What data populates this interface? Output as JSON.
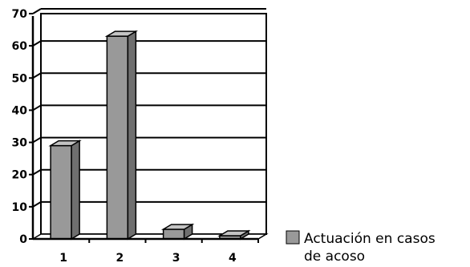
{
  "chart_data": {
    "type": "bar",
    "style": "3d",
    "categories": [
      "1",
      "2",
      "3",
      "4"
    ],
    "series": [
      {
        "name": "Actuación en casos de acoso",
        "values": [
          29,
          63,
          3,
          1
        ]
      }
    ],
    "y_ticks": [
      "0",
      "10",
      "20",
      "30",
      "40",
      "50",
      "60",
      "70"
    ],
    "ylim": [
      0,
      70
    ],
    "grid": true,
    "legend_position": "right",
    "legend_lines": [
      "Actuación en casos",
      "de acoso"
    ],
    "colors": {
      "bar_front": "#999999",
      "bar_side": "#6f6f6f",
      "bar_top": "#c4c4c4",
      "grid": "#000000",
      "axis": "#000000"
    }
  }
}
